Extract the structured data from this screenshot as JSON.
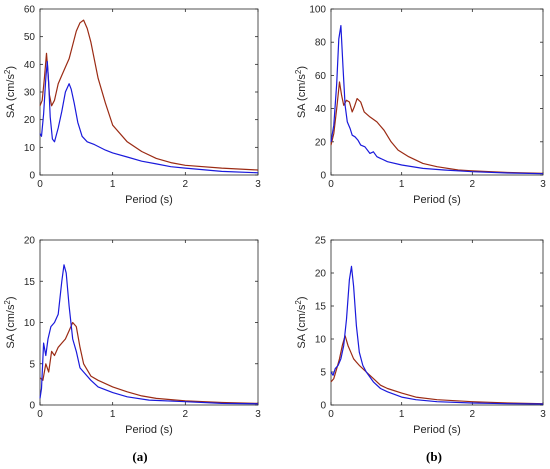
{
  "chart_data": [
    {
      "type": "line",
      "panel": "top-left",
      "xlabel": "Period (s)",
      "ylabel_main": "SA (cm/s",
      "ylabel_sup": "2",
      "ylabel_tail": ")",
      "xlim": [
        0,
        3
      ],
      "ylim": [
        0,
        60
      ],
      "xticks": [
        0,
        1,
        2,
        3
      ],
      "yticks": [
        0,
        10,
        20,
        30,
        40,
        50,
        60
      ],
      "grid": false,
      "series": [
        {
          "color": "#9b2b14",
          "x": [
            0,
            0.03,
            0.06,
            0.09,
            0.11,
            0.13,
            0.16,
            0.2,
            0.25,
            0.3,
            0.35,
            0.4,
            0.45,
            0.5,
            0.55,
            0.6,
            0.65,
            0.7,
            0.8,
            0.9,
            1.0,
            1.2,
            1.4,
            1.6,
            1.8,
            2.0,
            2.5,
            3.0
          ],
          "y": [
            25,
            27,
            35,
            44,
            37,
            29,
            25,
            27,
            33,
            36,
            39,
            42,
            47,
            52,
            55,
            56,
            53,
            48,
            35,
            26,
            18,
            12,
            8.5,
            6,
            4.5,
            3.5,
            2.5,
            1.8
          ]
        },
        {
          "color": "#1a1adc",
          "x": [
            0,
            0.02,
            0.05,
            0.08,
            0.1,
            0.12,
            0.14,
            0.17,
            0.2,
            0.25,
            0.3,
            0.35,
            0.4,
            0.43,
            0.47,
            0.52,
            0.58,
            0.65,
            0.75,
            0.9,
            1.0,
            1.2,
            1.4,
            1.6,
            1.8,
            2.0,
            2.5,
            3.0
          ],
          "y": [
            15,
            14,
            22,
            35,
            41,
            33,
            21,
            13,
            12,
            17,
            23,
            30,
            33,
            31,
            26,
            19,
            14,
            12,
            11,
            9,
            8,
            6.5,
            5,
            4,
            3,
            2.5,
            1.3,
            0.8
          ]
        }
      ]
    },
    {
      "type": "line",
      "panel": "top-right",
      "xlabel": "Period (s)",
      "ylabel_main": "SA (cm/s",
      "ylabel_sup": "2",
      "ylabel_tail": ")",
      "xlim": [
        0,
        3
      ],
      "ylim": [
        0,
        100
      ],
      "xticks": [
        0,
        1,
        2,
        3
      ],
      "yticks": [
        0,
        20,
        40,
        60,
        80,
        100
      ],
      "grid": false,
      "series": [
        {
          "color": "#9b2b14",
          "x": [
            0,
            0.04,
            0.08,
            0.12,
            0.15,
            0.18,
            0.22,
            0.26,
            0.3,
            0.33,
            0.37,
            0.42,
            0.47,
            0.55,
            0.65,
            0.75,
            0.85,
            0.95,
            1.1,
            1.3,
            1.5,
            1.8,
            2.0,
            2.5,
            3.0
          ],
          "y": [
            18,
            25,
            40,
            56,
            48,
            42,
            45,
            44,
            38,
            41,
            46,
            44,
            38,
            35,
            32,
            27,
            20,
            15,
            11,
            7,
            5,
            3,
            2.5,
            1.5,
            1
          ]
        },
        {
          "color": "#1a1adc",
          "x": [
            0,
            0.04,
            0.08,
            0.11,
            0.14,
            0.17,
            0.2,
            0.23,
            0.27,
            0.3,
            0.34,
            0.38,
            0.42,
            0.48,
            0.55,
            0.6,
            0.65,
            0.7,
            0.8,
            1.0,
            1.3,
            1.6,
            2.0,
            2.5,
            3.0
          ],
          "y": [
            20,
            30,
            55,
            82,
            90,
            65,
            42,
            32,
            28,
            24,
            23,
            21,
            18,
            17,
            13,
            14,
            11,
            10,
            8,
            6,
            4,
            3,
            2,
            1.2,
            0.8
          ]
        }
      ]
    },
    {
      "type": "line",
      "panel": "bottom-left",
      "xlabel": "Period (s)",
      "ylabel_main": "SA (cm/s",
      "ylabel_sup": "2",
      "ylabel_tail": ")",
      "xlim": [
        0,
        3
      ],
      "ylim": [
        0,
        20
      ],
      "xticks": [
        0,
        1,
        2,
        3
      ],
      "yticks": [
        0,
        5,
        10,
        15,
        20
      ],
      "grid": false,
      "series": [
        {
          "color": "#9b2b14",
          "x": [
            0,
            0.04,
            0.08,
            0.12,
            0.16,
            0.2,
            0.25,
            0.3,
            0.35,
            0.4,
            0.45,
            0.5,
            0.55,
            0.6,
            0.7,
            0.8,
            1.0,
            1.2,
            1.4,
            1.6,
            2.0,
            2.5,
            3.0
          ],
          "y": [
            3.3,
            3,
            5,
            4,
            6.5,
            6,
            7,
            7.5,
            8,
            9,
            10,
            9.5,
            7,
            5,
            3.5,
            3,
            2.2,
            1.6,
            1.1,
            0.8,
            0.5,
            0.3,
            0.2
          ]
        },
        {
          "color": "#1a1adc",
          "x": [
            0,
            0.02,
            0.05,
            0.08,
            0.11,
            0.15,
            0.2,
            0.25,
            0.3,
            0.33,
            0.36,
            0.4,
            0.45,
            0.5,
            0.55,
            0.6,
            0.7,
            0.8,
            1.0,
            1.2,
            1.5,
            2.0,
            2.5,
            3.0
          ],
          "y": [
            0.8,
            2,
            7.5,
            6,
            8,
            9.5,
            10,
            11,
            15,
            17,
            16,
            12,
            8,
            6.5,
            4.5,
            4,
            3,
            2.2,
            1.5,
            1,
            0.6,
            0.4,
            0.2,
            0.15
          ]
        }
      ]
    },
    {
      "type": "line",
      "panel": "bottom-right",
      "xlabel": "Period (s)",
      "ylabel_main": "SA (cm/s",
      "ylabel_sup": "2",
      "ylabel_tail": ")",
      "xlim": [
        0,
        3
      ],
      "ylim": [
        0,
        25
      ],
      "xticks": [
        0,
        1,
        2,
        3
      ],
      "yticks": [
        0,
        5,
        10,
        15,
        20,
        25
      ],
      "grid": false,
      "series": [
        {
          "color": "#9b2b14",
          "x": [
            0,
            0.04,
            0.08,
            0.12,
            0.16,
            0.2,
            0.24,
            0.28,
            0.32,
            0.36,
            0.4,
            0.45,
            0.5,
            0.6,
            0.7,
            0.8,
            1.0,
            1.2,
            1.5,
            2.0,
            2.5,
            3.0
          ],
          "y": [
            3.5,
            4,
            5.5,
            7,
            9,
            10.5,
            9,
            8,
            7,
            6.5,
            6,
            5.5,
            5,
            4,
            3,
            2.5,
            1.8,
            1.2,
            0.8,
            0.5,
            0.3,
            0.2
          ]
        },
        {
          "color": "#1a1adc",
          "x": [
            0,
            0.03,
            0.06,
            0.1,
            0.14,
            0.18,
            0.22,
            0.26,
            0.29,
            0.32,
            0.36,
            0.4,
            0.45,
            0.5,
            0.6,
            0.7,
            0.8,
            1.0,
            1.2,
            1.5,
            2.0,
            2.5,
            3.0
          ],
          "y": [
            5,
            4.5,
            5.5,
            6,
            7,
            9,
            13,
            19,
            21,
            18,
            12,
            8,
            6,
            5,
            3.5,
            2.5,
            2,
            1.2,
            0.8,
            0.5,
            0.3,
            0.2,
            0.15
          ]
        }
      ]
    }
  ],
  "captions": [
    "(a)",
    "(b)"
  ]
}
